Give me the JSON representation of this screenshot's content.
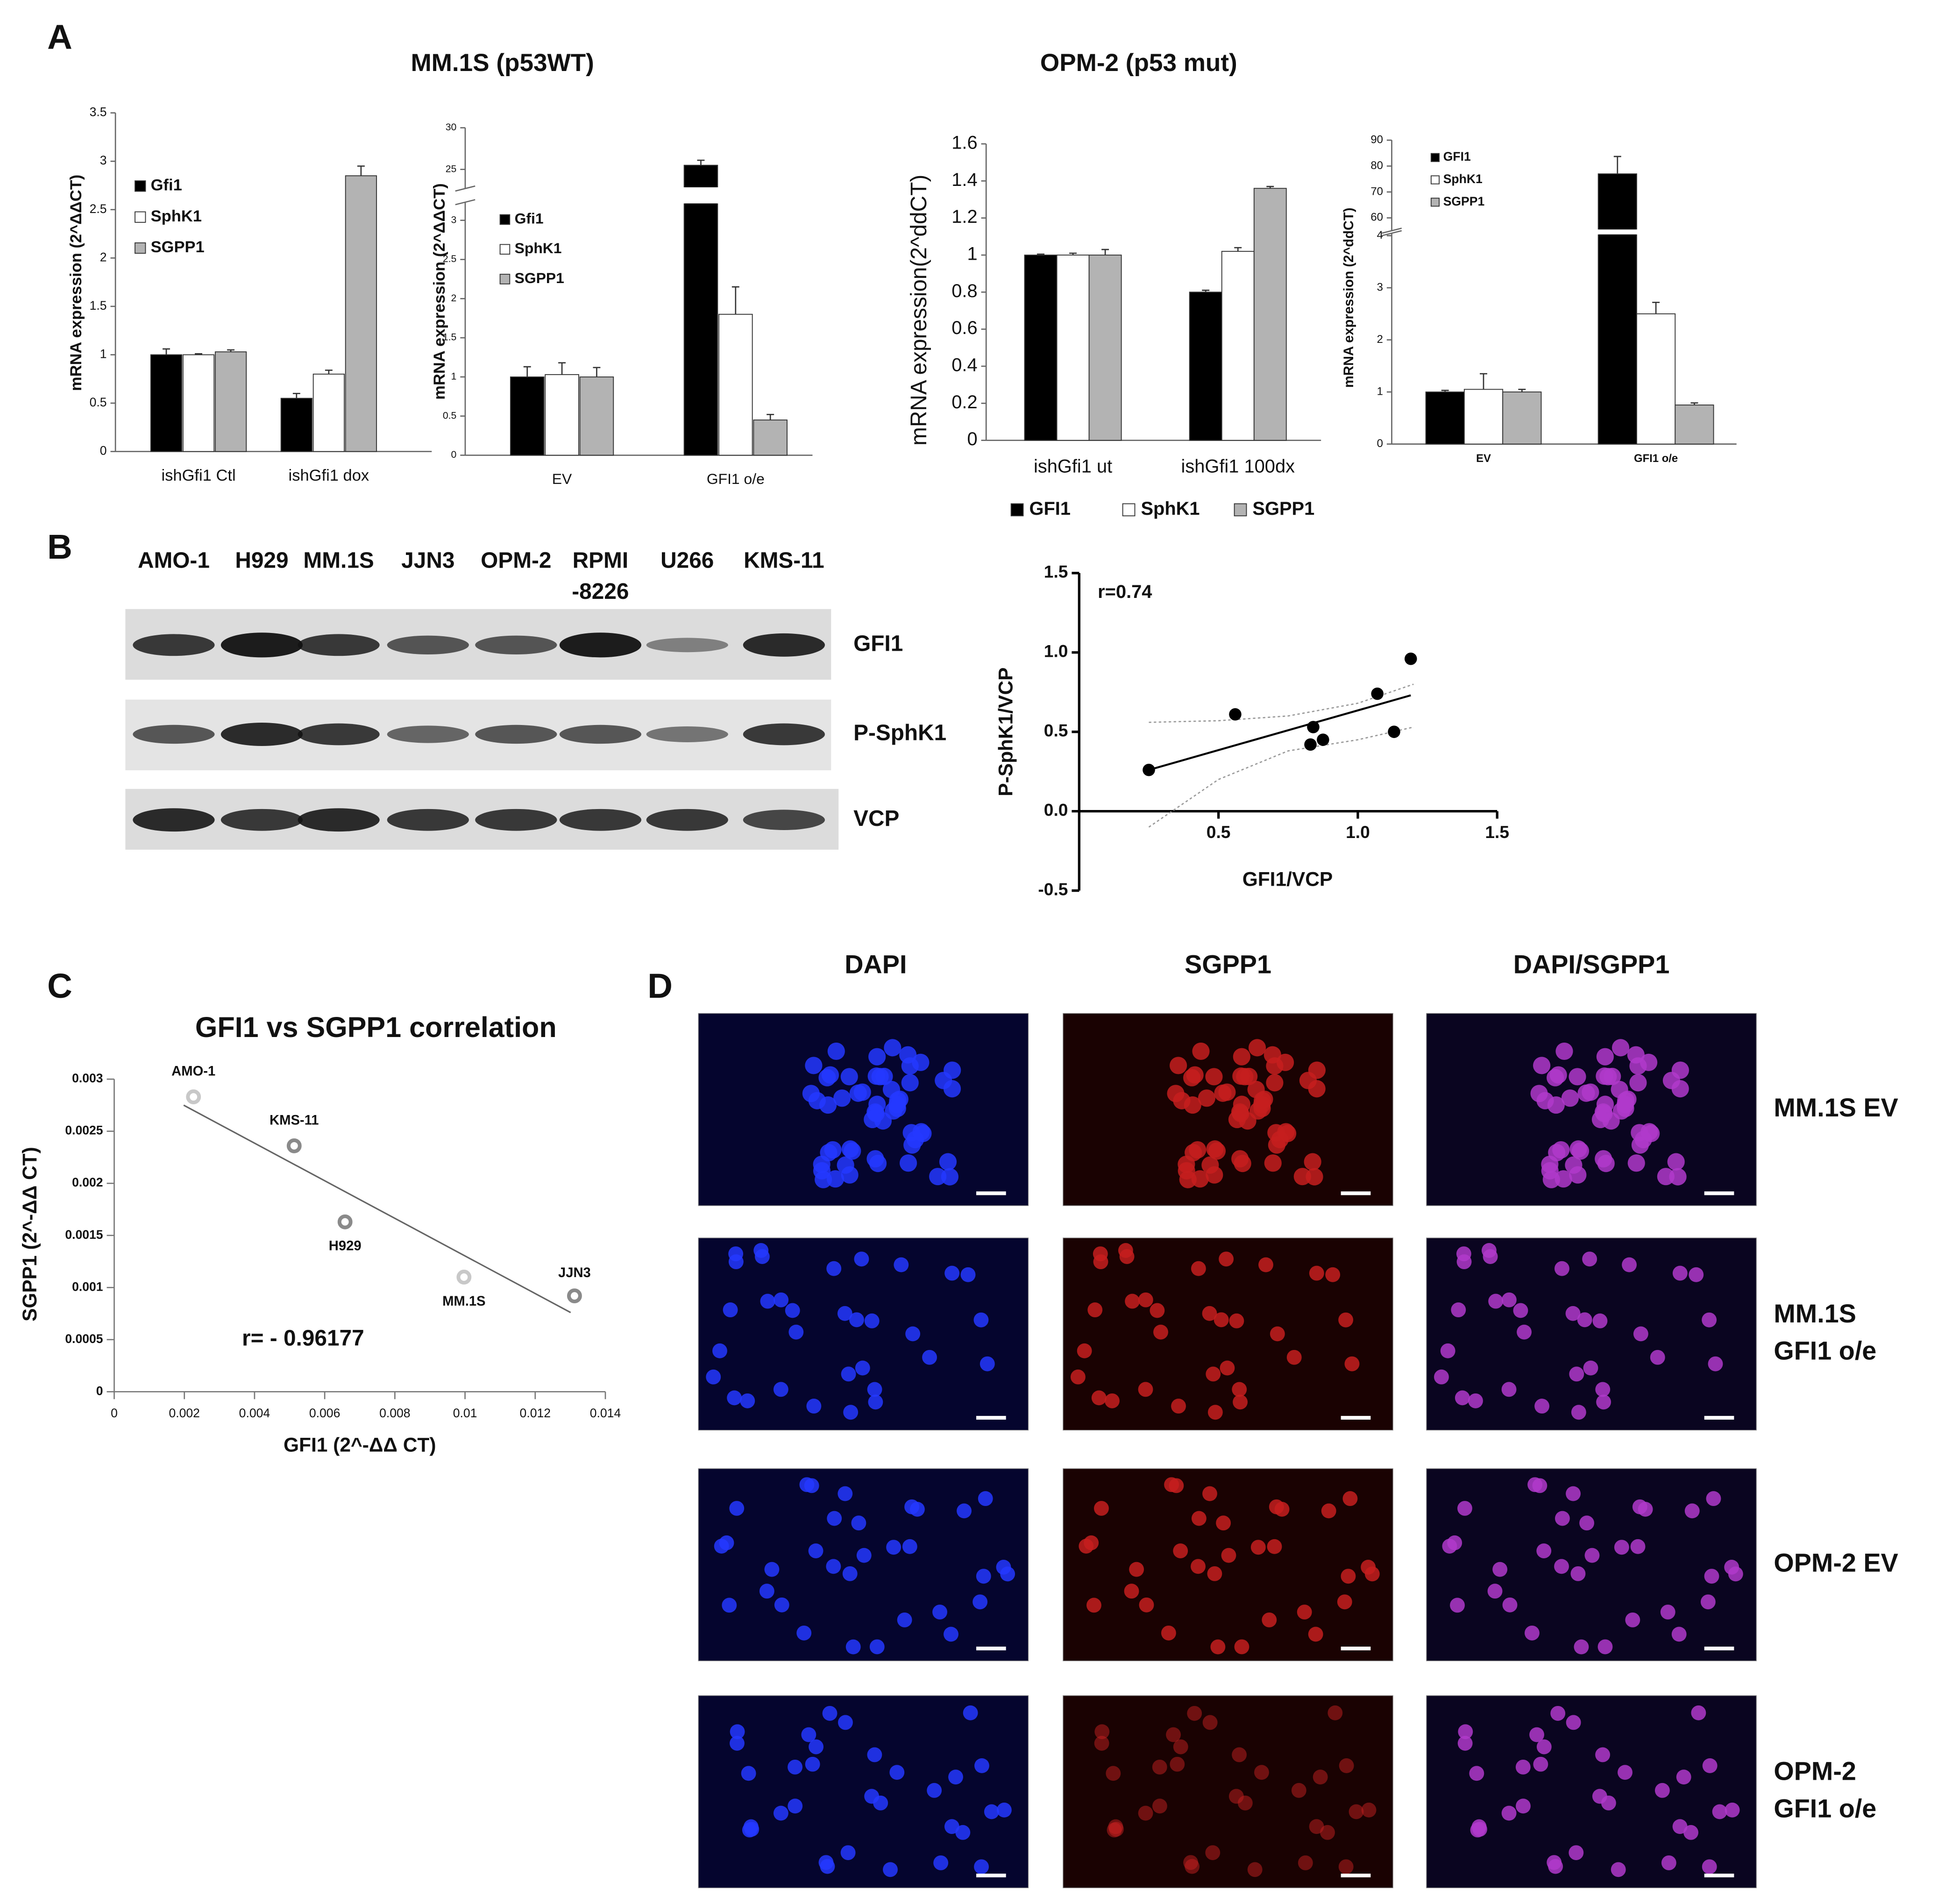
{
  "panel_labels": [
    "A",
    "B",
    "C",
    "D"
  ],
  "panel_a_titles": [
    "MM.1S (p53WT)",
    "OPM-2 (p53 mut)"
  ],
  "chart_data": [
    {
      "type": "bar",
      "ylabel": "mRNA expression (2^ΔΔCT)",
      "categories": [
        "ishGfi1 Ctl",
        "ishGfi1 dox"
      ],
      "ylim": [
        0,
        3.5
      ],
      "yticks": [
        0,
        0.5,
        1,
        1.5,
        2,
        2.5,
        3,
        3.5
      ],
      "series": [
        {
          "name": "Gfi1",
          "color": "#000000",
          "values": [
            1.0,
            0.55
          ],
          "errors": [
            0.06,
            0.05
          ]
        },
        {
          "name": "SphK1",
          "color": "#ffffff",
          "values": [
            1.0,
            0.8
          ],
          "errors": [
            0.01,
            0.04
          ]
        },
        {
          "name": "SGPP1",
          "color": "#b3b3b3",
          "values": [
            1.03,
            2.85
          ],
          "errors": [
            0.02,
            0.1
          ]
        }
      ]
    },
    {
      "type": "bar",
      "ylabel": "mRNA expression (2^ΔΔCT)",
      "categories": [
        "EV",
        "GFI1 o/e"
      ],
      "ylim": [
        0,
        30
      ],
      "axis_break": [
        3.2,
        23
      ],
      "yticks": [
        0,
        0.5,
        1,
        1.5,
        2,
        2.5,
        3,
        25,
        30
      ],
      "series": [
        {
          "name": "Gfi1",
          "color": "#000000",
          "values": [
            1.0,
            25.5
          ],
          "errors": [
            0.13,
            0.6
          ]
        },
        {
          "name": "SphK1",
          "color": "#ffffff",
          "values": [
            1.03,
            1.8
          ],
          "errors": [
            0.15,
            0.35
          ]
        },
        {
          "name": "SGPP1",
          "color": "#b3b3b3",
          "values": [
            1.0,
            0.45
          ],
          "errors": [
            0.12,
            0.07
          ]
        }
      ]
    },
    {
      "type": "bar",
      "ylabel": "mRNA expression(2^ddCT)",
      "categories": [
        "ishGfi1 ut",
        "ishGfi1 100dx"
      ],
      "ylim": [
        0,
        1.6
      ],
      "yticks": [
        0,
        0.2,
        0.4,
        0.6,
        0.8,
        1,
        1.2,
        1.4,
        1.6
      ],
      "series": [
        {
          "name": "GFI1",
          "color": "#000000",
          "values": [
            1.0,
            0.8
          ],
          "errors": [
            0.005,
            0.01
          ]
        },
        {
          "name": "SphK1",
          "color": "#ffffff",
          "values": [
            1.0,
            1.02
          ],
          "errors": [
            0.01,
            0.02
          ]
        },
        {
          "name": "SGPP1",
          "color": "#b3b3b3",
          "values": [
            1.0,
            1.36
          ],
          "errors": [
            0.03,
            0.01
          ]
        }
      ]
    },
    {
      "type": "bar",
      "ylabel": "mRNA expression (2^ddCT)",
      "categories": [
        "EV",
        "GFI1 o/e"
      ],
      "ylim": [
        0,
        90
      ],
      "axis_break": [
        4,
        56
      ],
      "yticks": [
        0,
        1,
        2,
        3,
        4,
        60,
        70,
        80,
        90
      ],
      "series": [
        {
          "name": "GFI1",
          "color": "#000000",
          "values": [
            1.0,
            77
          ],
          "errors": [
            0.03,
            6.7
          ]
        },
        {
          "name": "SphK1",
          "color": "#ffffff",
          "values": [
            1.05,
            2.5
          ],
          "errors": [
            0.3,
            0.22
          ]
        },
        {
          "name": "SGPP1",
          "color": "#b3b3b3",
          "values": [
            1.0,
            0.75
          ],
          "errors": [
            0.05,
            0.04
          ]
        }
      ]
    },
    {
      "type": "scatter",
      "xlabel": "GFI1/VCP",
      "ylabel": "P-SphK1/VCP",
      "annotation": "r=0.74",
      "x": [
        0.25,
        0.56,
        0.84,
        0.83,
        0.875,
        1.07,
        1.13,
        1.19
      ],
      "values": [
        0.26,
        0.61,
        0.53,
        0.42,
        0.45,
        0.74,
        0.5,
        0.96
      ],
      "color": "#000000",
      "xlim": [
        0,
        1.5
      ],
      "xticks": [
        0.5,
        {
          "value": 1,
          "label": "1.0"
        },
        1.5
      ],
      "ylim": [
        -0.5,
        1.5
      ],
      "yticks": [
        -0.5,
        {
          "value": 0,
          "label": "0.0"
        },
        0.5,
        {
          "value": 1,
          "label": "1.0"
        },
        1.5
      ],
      "fit": {
        "x": [
          0.25,
          1.19
        ],
        "y": [
          0.26,
          0.73
        ]
      },
      "band": {
        "x": [
          0.25,
          0.5,
          0.75,
          1.0,
          1.2
        ],
        "upper": [
          0.56,
          0.57,
          0.6,
          0.68,
          0.8
        ],
        "lower": [
          -0.1,
          0.2,
          0.38,
          0.45,
          0.53
        ]
      }
    },
    {
      "type": "scatter",
      "title": "GFI1 vs SGPP1 correlation",
      "xlabel": "GFI1 (2^-ΔΔ CT)",
      "ylabel": "SGPP1 (2^-ΔΔ CT)",
      "annotation": "r= - 0.96177",
      "point_labels": [
        "AMO-1",
        "KMS-11",
        "H929",
        "MM.1S",
        "JJN3"
      ],
      "x": [
        0.00226,
        0.00513,
        0.00658,
        0.00997,
        0.01312
      ],
      "values": [
        0.00283,
        0.00236,
        0.00163,
        0.0011,
        0.00092
      ],
      "point_colors": [
        "#c8c8c8",
        "#8a8a8a",
        "#8a8a8a",
        "#c8c8c8",
        "#8a8a8a"
      ],
      "xlim": [
        0,
        0.014
      ],
      "xticks": [
        0,
        0.002,
        0.004,
        0.006,
        0.008,
        0.01,
        0.012,
        0.014
      ],
      "ylim": [
        0,
        0.003
      ],
      "yticks": [
        0,
        0.0005,
        0.001,
        0.0015,
        0.002,
        0.0025,
        0.003
      ],
      "fit": {
        "x": [
          0.00198,
          0.01301
        ],
        "y": [
          0.00275,
          0.00076
        ]
      }
    }
  ],
  "blot": {
    "lanes": [
      [
        "AMO-1"
      ],
      [
        "H929"
      ],
      [
        "MM.1S"
      ],
      [
        "JJN3"
      ],
      [
        "OPM-2"
      ],
      [
        "RPMI",
        "-8226"
      ],
      [
        "U266"
      ],
      [
        "KMS-11"
      ]
    ],
    "rows": [
      "GFI1",
      "P-SphK1",
      "VCP"
    ]
  },
  "microscopy": {
    "columns": [
      "DAPI",
      "SGPP1",
      "DAPI/SGPP1"
    ],
    "rows": [
      [
        "MM.1S EV"
      ],
      [
        "MM.1S",
        "GFI1 o/e"
      ],
      [
        "OPM-2 EV"
      ],
      [
        "OPM-2",
        "GFI1 o/e"
      ]
    ]
  }
}
